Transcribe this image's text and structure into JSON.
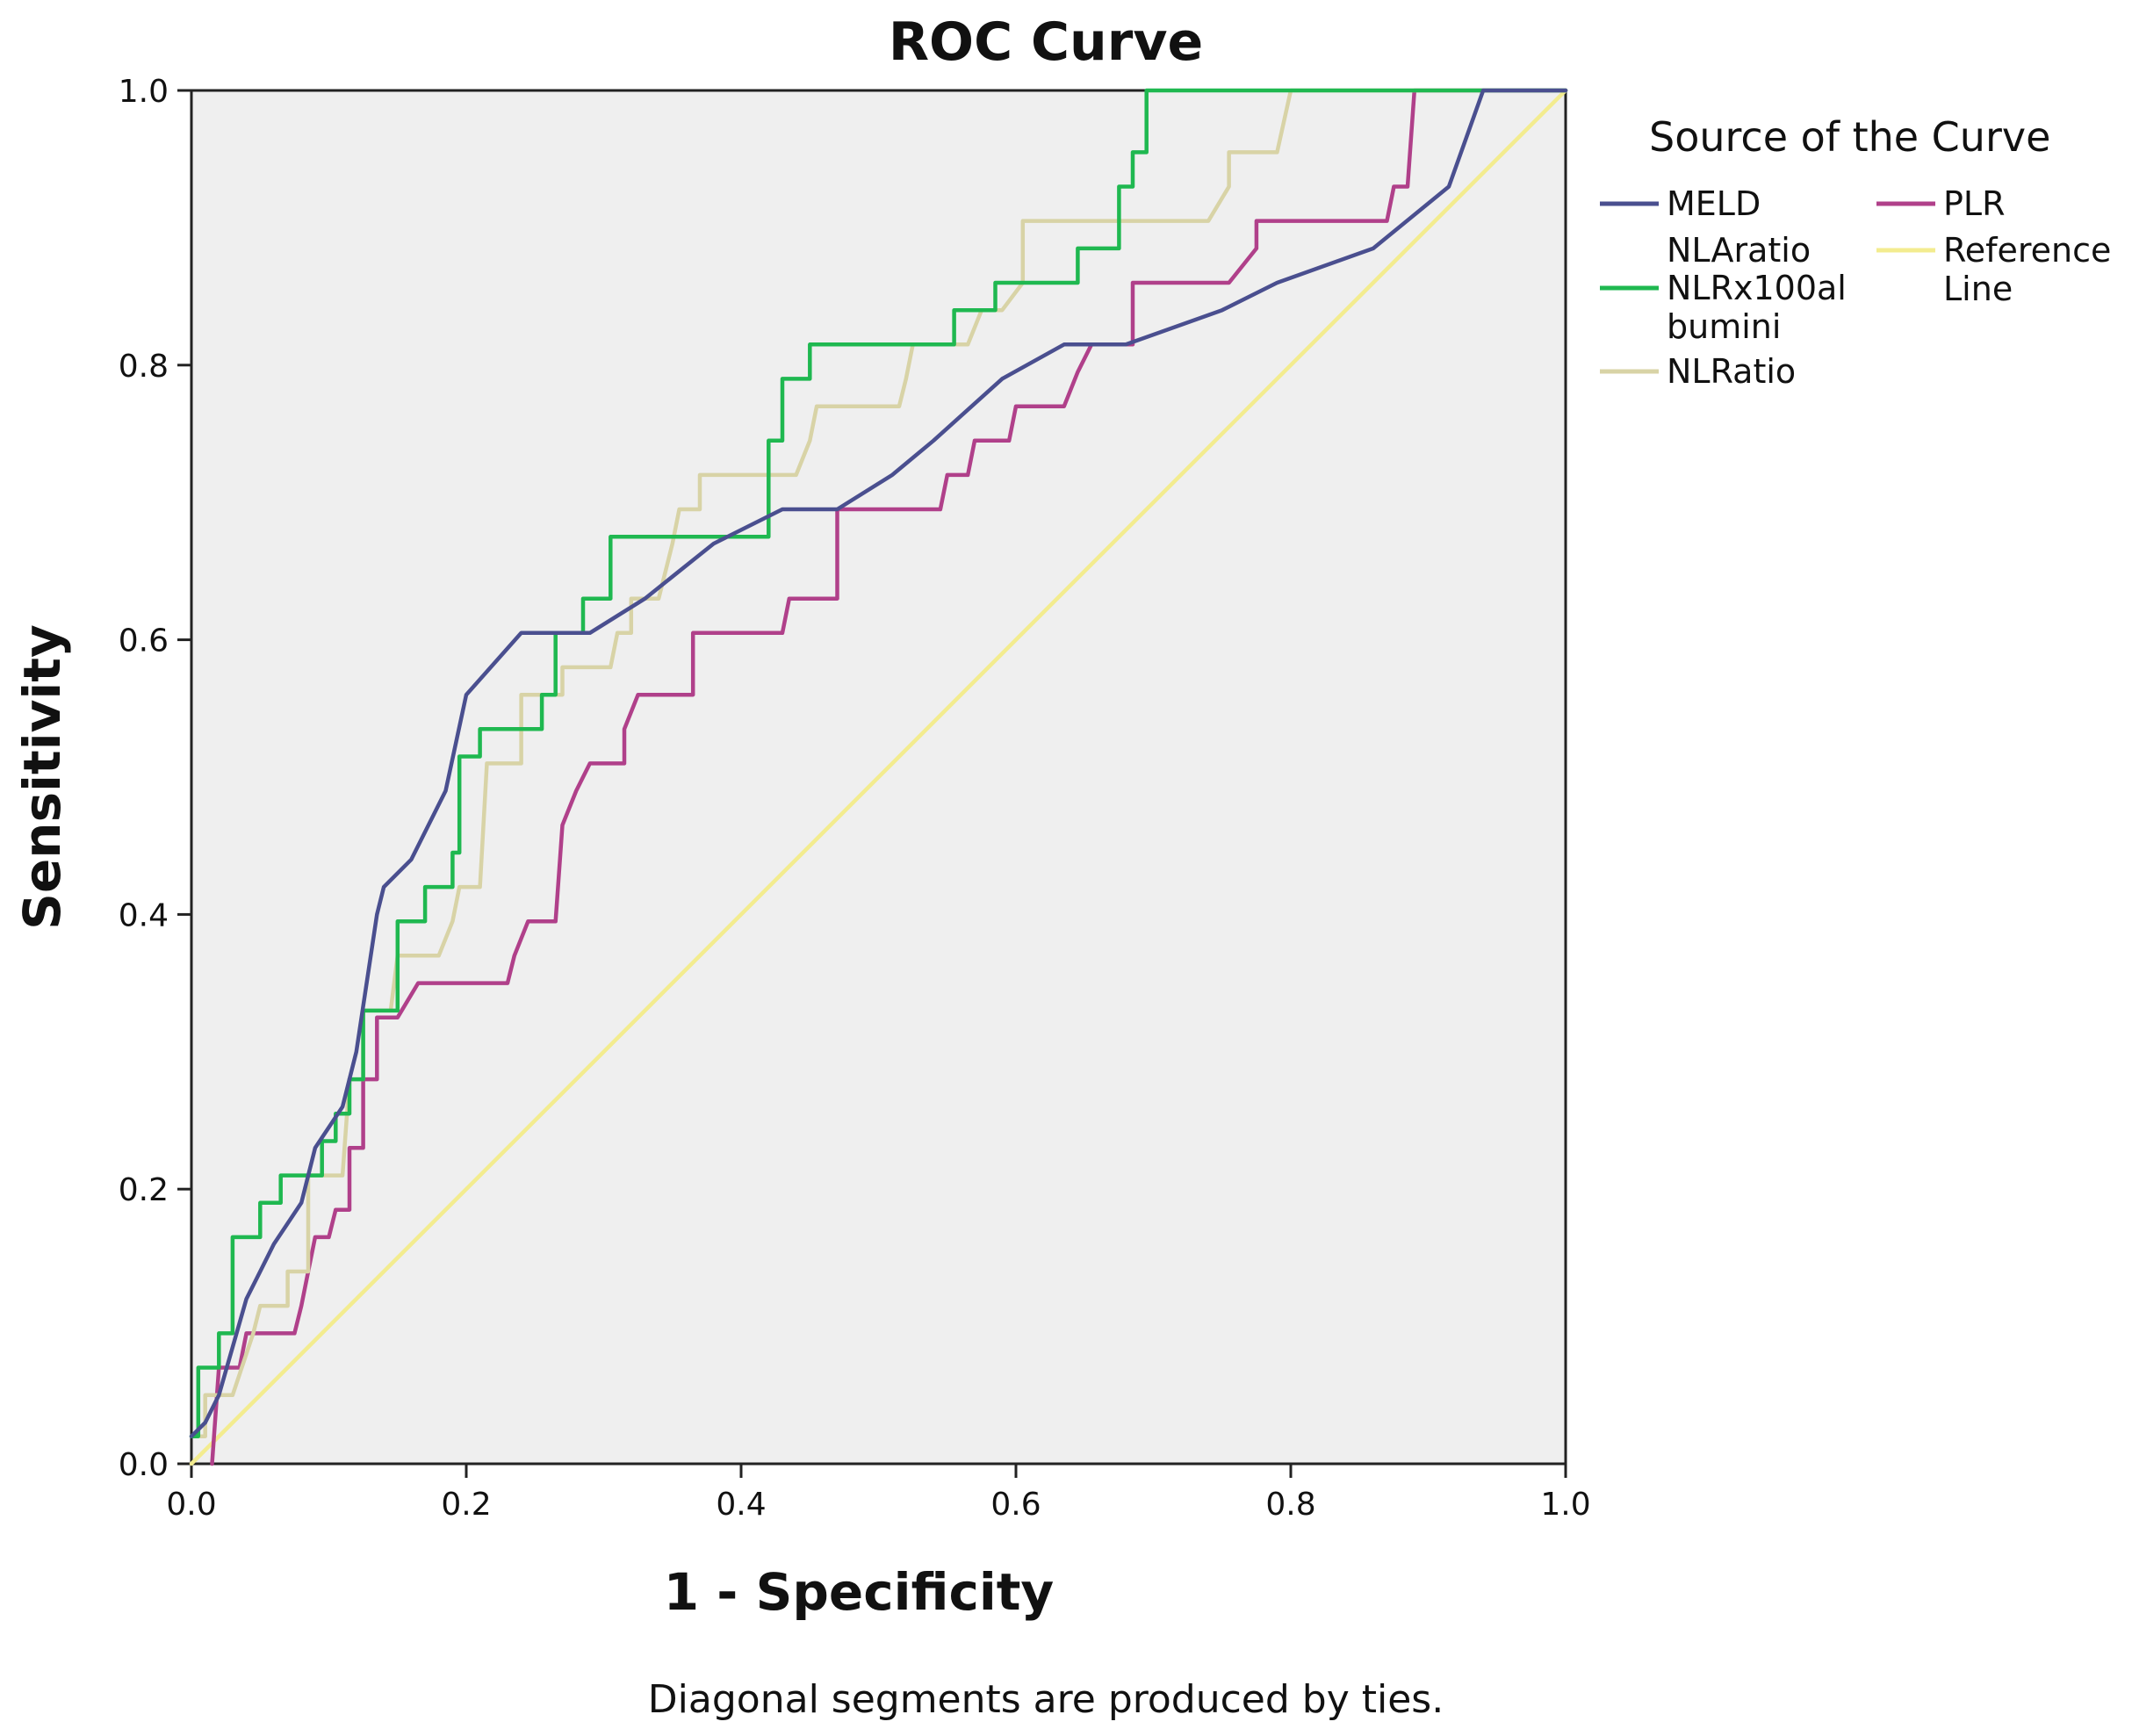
{
  "chart_data": {
    "type": "line",
    "title": "ROC Curve",
    "xlabel": "1 - Specificity",
    "ylabel": "Sensitivity",
    "xlim": [
      0.0,
      1.0
    ],
    "ylim": [
      0.0,
      1.0
    ],
    "xticks": [
      "0.0",
      "0.2",
      "0.4",
      "0.6",
      "0.8",
      "1.0"
    ],
    "yticks": [
      "0.0",
      "0.2",
      "0.4",
      "0.6",
      "0.8",
      "1.0"
    ],
    "grid": false,
    "legend_title": "Source of the Curve",
    "legend_position": "right",
    "footnote": "Diagonal segments are produced by ties.",
    "series": [
      {
        "name": "MELD",
        "color": "#4a4f8f",
        "points": [
          [
            0,
            0.02
          ],
          [
            0.01,
            0.03
          ],
          [
            0.02,
            0.05
          ],
          [
            0.04,
            0.12
          ],
          [
            0.05,
            0.14
          ],
          [
            0.06,
            0.16
          ],
          [
            0.08,
            0.19
          ],
          [
            0.09,
            0.23
          ],
          [
            0.11,
            0.26
          ],
          [
            0.12,
            0.3
          ],
          [
            0.135,
            0.4
          ],
          [
            0.14,
            0.42
          ],
          [
            0.16,
            0.44
          ],
          [
            0.185,
            0.49
          ],
          [
            0.2,
            0.56
          ],
          [
            0.24,
            0.605
          ],
          [
            0.26,
            0.605
          ],
          [
            0.29,
            0.605
          ],
          [
            0.33,
            0.63
          ],
          [
            0.38,
            0.67
          ],
          [
            0.43,
            0.695
          ],
          [
            0.47,
            0.695
          ],
          [
            0.51,
            0.72
          ],
          [
            0.54,
            0.745
          ],
          [
            0.59,
            0.79
          ],
          [
            0.635,
            0.815
          ],
          [
            0.68,
            0.815
          ],
          [
            0.75,
            0.84
          ],
          [
            0.79,
            0.86
          ],
          [
            0.86,
            0.885
          ],
          [
            0.915,
            0.93
          ],
          [
            0.94,
            1.0
          ],
          [
            1.0,
            1.0
          ]
        ]
      },
      {
        "name": "NLAratio",
        "color": "#ffffff",
        "points": []
      },
      {
        "name": "NLRx100albumini",
        "label_lines": [
          "NLRx100al",
          "bumini"
        ],
        "color": "#1fb850",
        "points": [
          [
            0,
            0.02
          ],
          [
            0.005,
            0.02
          ],
          [
            0.005,
            0.07
          ],
          [
            0.02,
            0.07
          ],
          [
            0.02,
            0.095
          ],
          [
            0.03,
            0.095
          ],
          [
            0.03,
            0.165
          ],
          [
            0.05,
            0.165
          ],
          [
            0.05,
            0.19
          ],
          [
            0.065,
            0.19
          ],
          [
            0.065,
            0.21
          ],
          [
            0.095,
            0.21
          ],
          [
            0.095,
            0.235
          ],
          [
            0.105,
            0.235
          ],
          [
            0.105,
            0.255
          ],
          [
            0.115,
            0.255
          ],
          [
            0.115,
            0.28
          ],
          [
            0.125,
            0.28
          ],
          [
            0.125,
            0.33
          ],
          [
            0.15,
            0.33
          ],
          [
            0.15,
            0.395
          ],
          [
            0.17,
            0.395
          ],
          [
            0.17,
            0.42
          ],
          [
            0.19,
            0.42
          ],
          [
            0.19,
            0.445
          ],
          [
            0.195,
            0.445
          ],
          [
            0.195,
            0.515
          ],
          [
            0.21,
            0.515
          ],
          [
            0.21,
            0.535
          ],
          [
            0.255,
            0.535
          ],
          [
            0.255,
            0.56
          ],
          [
            0.265,
            0.56
          ],
          [
            0.265,
            0.605
          ],
          [
            0.285,
            0.605
          ],
          [
            0.285,
            0.63
          ],
          [
            0.305,
            0.63
          ],
          [
            0.305,
            0.675
          ],
          [
            0.42,
            0.675
          ],
          [
            0.42,
            0.745
          ],
          [
            0.43,
            0.745
          ],
          [
            0.43,
            0.79
          ],
          [
            0.45,
            0.79
          ],
          [
            0.45,
            0.815
          ],
          [
            0.555,
            0.815
          ],
          [
            0.555,
            0.84
          ],
          [
            0.585,
            0.84
          ],
          [
            0.585,
            0.86
          ],
          [
            0.645,
            0.86
          ],
          [
            0.645,
            0.885
          ],
          [
            0.675,
            0.885
          ],
          [
            0.675,
            0.93
          ],
          [
            0.685,
            0.93
          ],
          [
            0.685,
            0.955
          ],
          [
            0.695,
            0.955
          ],
          [
            0.695,
            1.0
          ],
          [
            1.0,
            1.0
          ]
        ]
      },
      {
        "name": "NLRatio",
        "color": "#d8d3a6",
        "points": [
          [
            0,
            0.02
          ],
          [
            0.01,
            0.02
          ],
          [
            0.01,
            0.05
          ],
          [
            0.03,
            0.05
          ],
          [
            0.045,
            0.095
          ],
          [
            0.05,
            0.115
          ],
          [
            0.07,
            0.115
          ],
          [
            0.07,
            0.14
          ],
          [
            0.085,
            0.14
          ],
          [
            0.085,
            0.21
          ],
          [
            0.11,
            0.21
          ],
          [
            0.115,
            0.28
          ],
          [
            0.125,
            0.28
          ],
          [
            0.125,
            0.33
          ],
          [
            0.145,
            0.33
          ],
          [
            0.15,
            0.37
          ],
          [
            0.18,
            0.37
          ],
          [
            0.19,
            0.395
          ],
          [
            0.195,
            0.42
          ],
          [
            0.21,
            0.42
          ],
          [
            0.215,
            0.51
          ],
          [
            0.24,
            0.51
          ],
          [
            0.24,
            0.56
          ],
          [
            0.27,
            0.56
          ],
          [
            0.27,
            0.58
          ],
          [
            0.305,
            0.58
          ],
          [
            0.31,
            0.605
          ],
          [
            0.32,
            0.605
          ],
          [
            0.32,
            0.63
          ],
          [
            0.34,
            0.63
          ],
          [
            0.35,
            0.67
          ],
          [
            0.355,
            0.695
          ],
          [
            0.37,
            0.695
          ],
          [
            0.37,
            0.72
          ],
          [
            0.44,
            0.72
          ],
          [
            0.45,
            0.745
          ],
          [
            0.455,
            0.77
          ],
          [
            0.515,
            0.77
          ],
          [
            0.52,
            0.79
          ],
          [
            0.525,
            0.815
          ],
          [
            0.565,
            0.815
          ],
          [
            0.575,
            0.84
          ],
          [
            0.59,
            0.84
          ],
          [
            0.605,
            0.86
          ],
          [
            0.605,
            0.905
          ],
          [
            0.74,
            0.905
          ],
          [
            0.755,
            0.93
          ],
          [
            0.755,
            0.955
          ],
          [
            0.79,
            0.955
          ],
          [
            0.8,
            1.0
          ],
          [
            1.0,
            1.0
          ]
        ]
      },
      {
        "name": "PLR",
        "color": "#b0408a",
        "points": [
          [
            0.015,
            0
          ],
          [
            0.02,
            0.07
          ],
          [
            0.035,
            0.07
          ],
          [
            0.04,
            0.095
          ],
          [
            0.075,
            0.095
          ],
          [
            0.08,
            0.115
          ],
          [
            0.085,
            0.14
          ],
          [
            0.09,
            0.165
          ],
          [
            0.1,
            0.165
          ],
          [
            0.105,
            0.185
          ],
          [
            0.115,
            0.185
          ],
          [
            0.115,
            0.23
          ],
          [
            0.125,
            0.23
          ],
          [
            0.125,
            0.28
          ],
          [
            0.135,
            0.28
          ],
          [
            0.135,
            0.325
          ],
          [
            0.15,
            0.325
          ],
          [
            0.165,
            0.35
          ],
          [
            0.23,
            0.35
          ],
          [
            0.235,
            0.37
          ],
          [
            0.245,
            0.395
          ],
          [
            0.265,
            0.395
          ],
          [
            0.27,
            0.465
          ],
          [
            0.28,
            0.49
          ],
          [
            0.29,
            0.51
          ],
          [
            0.315,
            0.51
          ],
          [
            0.315,
            0.535
          ],
          [
            0.325,
            0.56
          ],
          [
            0.365,
            0.56
          ],
          [
            0.365,
            0.605
          ],
          [
            0.43,
            0.605
          ],
          [
            0.435,
            0.63
          ],
          [
            0.47,
            0.63
          ],
          [
            0.47,
            0.695
          ],
          [
            0.545,
            0.695
          ],
          [
            0.55,
            0.72
          ],
          [
            0.565,
            0.72
          ],
          [
            0.57,
            0.745
          ],
          [
            0.595,
            0.745
          ],
          [
            0.6,
            0.77
          ],
          [
            0.635,
            0.77
          ],
          [
            0.645,
            0.795
          ],
          [
            0.655,
            0.815
          ],
          [
            0.685,
            0.815
          ],
          [
            0.685,
            0.86
          ],
          [
            0.755,
            0.86
          ],
          [
            0.775,
            0.885
          ],
          [
            0.775,
            0.905
          ],
          [
            0.87,
            0.905
          ],
          [
            0.875,
            0.93
          ],
          [
            0.885,
            0.93
          ],
          [
            0.89,
            1.0
          ],
          [
            1.0,
            1.0
          ]
        ]
      },
      {
        "name": "Reference Line",
        "label_lines": [
          "Reference",
          "Line"
        ],
        "color": "#f3ec8f",
        "points": [
          [
            0,
            0
          ],
          [
            1,
            1
          ]
        ]
      }
    ]
  }
}
